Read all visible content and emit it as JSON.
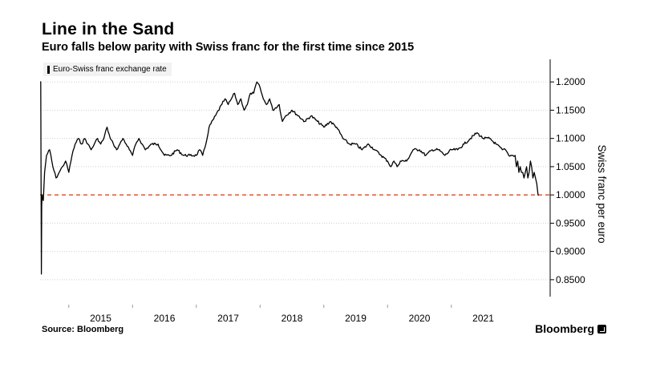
{
  "header": {
    "title": "Line in the Sand",
    "subtitle": "Euro falls below parity with Swiss franc for the first time since 2015"
  },
  "footer": {
    "source": "Source: Bloomberg",
    "brand": "Bloomberg"
  },
  "colors": {
    "series": "#000000",
    "reference_line": "#e4582f",
    "grid": "#cfcfcf",
    "legend_bg": "#f2f2f2"
  },
  "chart_data": {
    "type": "line",
    "title": "Line in the Sand",
    "subtitle": "Euro falls below parity with Swiss franc for the first time since 2015",
    "xlabel": "",
    "ylabel": "Swiss franc per euro",
    "ylim": [
      0.82,
      1.24
    ],
    "xlim": [
      2014.55,
      2022.55
    ],
    "y_ticks": [
      0.85,
      0.9,
      0.95,
      1.0,
      1.05,
      1.1,
      1.15,
      1.2
    ],
    "y_tick_labels": [
      "0.8500",
      "0.9000",
      "0.9500",
      "1.0000",
      "1.0500",
      "1.1000",
      "1.1500",
      "1.2000"
    ],
    "x_ticks": [
      2015,
      2016,
      2017,
      2018,
      2019,
      2020,
      2021
    ],
    "x_tick_labels": [
      "2015",
      "2016",
      "2017",
      "2018",
      "2019",
      "2020",
      "2021"
    ],
    "grid": true,
    "y_axis_position": "right",
    "legend": "top-left",
    "reference_line": {
      "y": 1.0,
      "style": "dashed"
    },
    "series": [
      {
        "name": "Euro-Swiss franc exchange rate",
        "x": [
          2014.55,
          2014.56,
          2014.57,
          2014.575,
          2014.58,
          2014.6,
          2014.62,
          2014.65,
          2014.7,
          2014.75,
          2014.8,
          2014.85,
          2014.9,
          2014.95,
          2015.0,
          2015.05,
          2015.1,
          2015.15,
          2015.2,
          2015.25,
          2015.3,
          2015.35,
          2015.4,
          2015.45,
          2015.5,
          2015.55,
          2015.6,
          2015.65,
          2015.7,
          2015.75,
          2015.8,
          2015.85,
          2015.9,
          2015.95,
          2016.0,
          2016.05,
          2016.1,
          2016.15,
          2016.2,
          2016.3,
          2016.4,
          2016.5,
          2016.6,
          2016.7,
          2016.8,
          2016.9,
          2017.0,
          2017.05,
          2017.1,
          2017.15,
          2017.2,
          2017.3,
          2017.4,
          2017.45,
          2017.5,
          2017.55,
          2017.6,
          2017.65,
          2017.7,
          2017.75,
          2017.8,
          2017.85,
          2017.9,
          2017.95,
          2018.0,
          2018.05,
          2018.1,
          2018.15,
          2018.2,
          2018.3,
          2018.35,
          2018.4,
          2018.5,
          2018.6,
          2018.7,
          2018.8,
          2018.9,
          2019.0,
          2019.1,
          2019.2,
          2019.3,
          2019.4,
          2019.5,
          2019.6,
          2019.7,
          2019.8,
          2019.9,
          2020.0,
          2020.05,
          2020.1,
          2020.15,
          2020.2,
          2020.3,
          2020.4,
          2020.5,
          2020.6,
          2020.7,
          2020.8,
          2020.9,
          2021.0,
          2021.1,
          2021.2,
          2021.3,
          2021.4,
          2021.5,
          2021.6,
          2021.7,
          2021.8,
          2021.85,
          2021.9,
          2021.95,
          2022.0,
          2022.02,
          2022.04,
          2022.06,
          2022.08,
          2022.1,
          2022.12,
          2022.14,
          2022.16,
          2022.18,
          2022.2,
          2022.22,
          2022.24,
          2022.26,
          2022.28,
          2022.3,
          2022.32,
          2022.34,
          2022.36,
          2022.37
        ],
        "values": [
          1.2,
          1.2,
          0.86,
          0.98,
          1.0,
          0.99,
          1.04,
          1.07,
          1.08,
          1.05,
          1.03,
          1.04,
          1.05,
          1.06,
          1.04,
          1.07,
          1.09,
          1.1,
          1.09,
          1.1,
          1.09,
          1.08,
          1.09,
          1.1,
          1.09,
          1.1,
          1.12,
          1.1,
          1.09,
          1.08,
          1.09,
          1.1,
          1.09,
          1.08,
          1.07,
          1.09,
          1.1,
          1.09,
          1.08,
          1.09,
          1.09,
          1.07,
          1.07,
          1.08,
          1.07,
          1.07,
          1.07,
          1.08,
          1.07,
          1.09,
          1.12,
          1.14,
          1.16,
          1.17,
          1.16,
          1.17,
          1.18,
          1.16,
          1.17,
          1.15,
          1.16,
          1.18,
          1.18,
          1.2,
          1.19,
          1.17,
          1.16,
          1.17,
          1.15,
          1.16,
          1.13,
          1.14,
          1.15,
          1.14,
          1.13,
          1.14,
          1.13,
          1.12,
          1.13,
          1.12,
          1.1,
          1.09,
          1.09,
          1.08,
          1.09,
          1.08,
          1.07,
          1.06,
          1.05,
          1.06,
          1.05,
          1.06,
          1.06,
          1.08,
          1.08,
          1.07,
          1.08,
          1.08,
          1.07,
          1.08,
          1.08,
          1.09,
          1.1,
          1.11,
          1.1,
          1.1,
          1.09,
          1.08,
          1.08,
          1.07,
          1.07,
          1.07,
          1.05,
          1.06,
          1.04,
          1.05,
          1.04,
          1.04,
          1.03,
          1.04,
          1.05,
          1.03,
          1.04,
          1.06,
          1.05,
          1.03,
          1.04,
          1.03,
          1.02,
          1.0,
          0.999
        ]
      }
    ]
  }
}
